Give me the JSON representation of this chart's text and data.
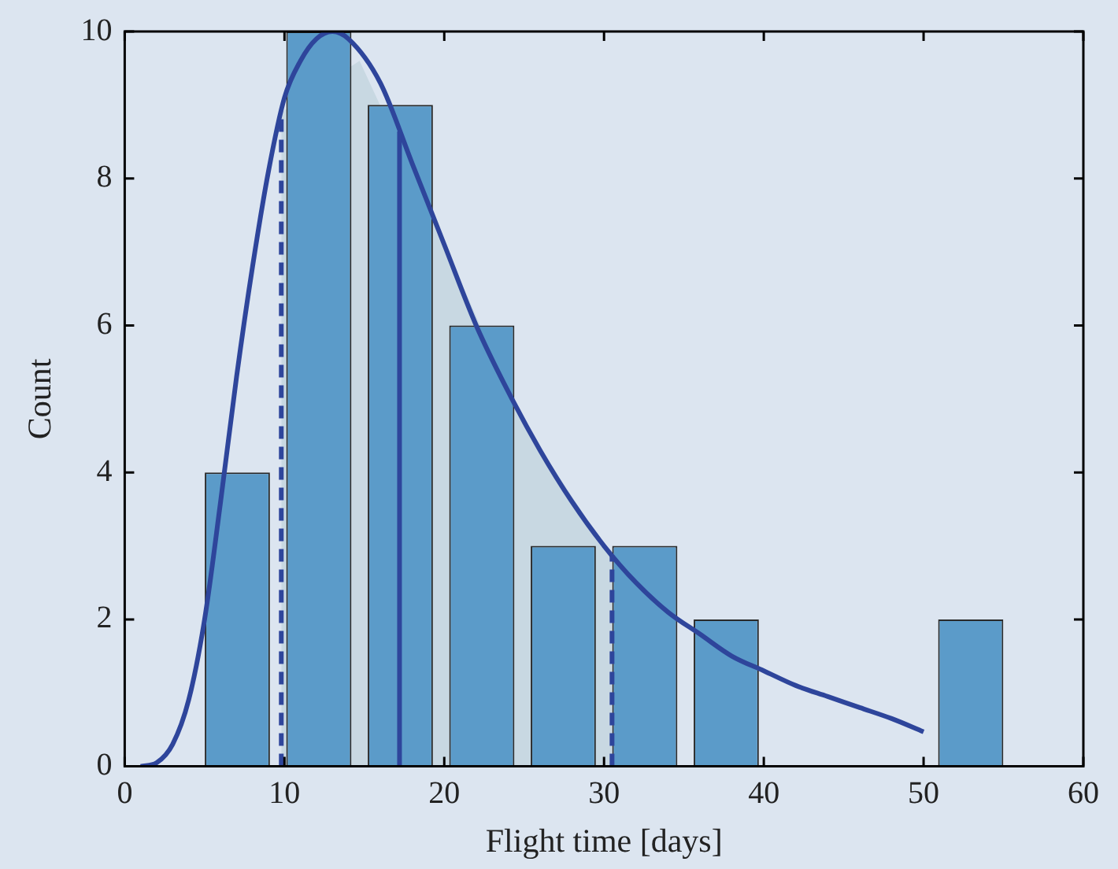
{
  "chart_data": {
    "type": "histogram",
    "xlabel": "Flight time [days]",
    "ylabel": "Count",
    "bins": [
      4.5,
      9.6,
      14.7,
      19.8,
      24.9,
      30.0,
      35.1,
      40.2,
      45.3,
      50.4,
      55.5
    ],
    "values": [
      4,
      10,
      9,
      6,
      3,
      3,
      2,
      0,
      0,
      2
    ],
    "color": "#5b9bc9",
    "series": [
      {
        "type": "area",
        "color": "#c8d8e2",
        "x": [
          9.8,
          14.7,
          19.8,
          24.9,
          30.0,
          30.5
        ],
        "values": [
          8.9,
          9.6,
          7.2,
          4.7,
          3.0,
          2.9
        ]
      },
      {
        "type": "line",
        "color": "#2e459b",
        "x": [
          1,
          2,
          3,
          4,
          5,
          6,
          7,
          8,
          9,
          10,
          11,
          12,
          13,
          14,
          16,
          18,
          20,
          22,
          24,
          26,
          28,
          30,
          32,
          34,
          36,
          38,
          40,
          42,
          44,
          46,
          48,
          50
        ],
        "values": [
          0,
          0.05,
          0.3,
          0.9,
          2.0,
          3.6,
          5.3,
          6.8,
          8.1,
          9.1,
          9.6,
          9.9,
          10,
          9.9,
          9.3,
          8.2,
          7.1,
          6.0,
          5.1,
          4.3,
          3.6,
          3.0,
          2.5,
          2.1,
          1.8,
          1.5,
          1.3,
          1.1,
          0.95,
          0.8,
          0.65,
          0.47
        ]
      }
    ],
    "ref_lines": [
      {
        "axis": "x",
        "value": 9.8,
        "color": "#2e459b",
        "line_style": "dashed"
      },
      {
        "axis": "x",
        "value": 17.2,
        "color": "#2e459b",
        "line_style": "solid"
      },
      {
        "axis": "x",
        "value": 30.5,
        "color": "#2e459b",
        "line_style": "dashed"
      }
    ],
    "xlim": [
      0,
      60
    ],
    "xticks": [
      0,
      10,
      20,
      30,
      40,
      50,
      60
    ],
    "ylim": [
      0,
      10
    ],
    "yticks": [
      0,
      2,
      4,
      6,
      8,
      10
    ],
    "grid": false,
    "legend": false
  }
}
